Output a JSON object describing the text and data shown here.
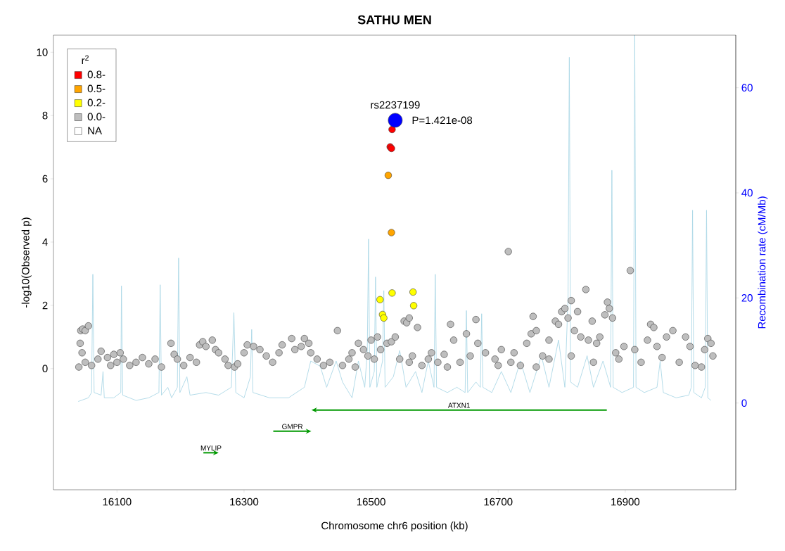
{
  "chart_data": {
    "type": "scatter",
    "title": "SATHU MEN",
    "xlabel": "Chromosome chr6 position (kb)",
    "ylabel": "-log10(Observed p)",
    "y2label": "Recombination rate (cM/Mb)",
    "legend_title": "r$^{2}$",
    "legend": "top left",
    "xlim": [
      16000,
      17074
    ],
    "xticks": [
      16100,
      16300,
      16500,
      16700,
      16900
    ],
    "ylim": [
      -3.83,
      10.54
    ],
    "yticks": [
      0,
      2,
      4,
      6,
      8,
      10
    ],
    "y2lim": [
      -16.5,
      70
    ],
    "y2ticks": [
      0,
      20,
      40,
      60
    ],
    "annotations": [
      {
        "text": "rs2237199",
        "x": 16538,
        "y": 7.85
      },
      {
        "text": "P=1.421e-08",
        "x": 16538,
        "y": 7.85
      },
      "ATXN1",
      "GMPR",
      "MYLIP"
    ],
    "series": [
      {
        "marker": "circle",
        "color": "#0000ff",
        "x": [
          16538
        ],
        "values": [
          7.85
        ]
      },
      {
        "name": "0.8-",
        "marker": "circle",
        "color": "#ff0000",
        "x": [
          16533,
          16530,
          16532
        ],
        "values": [
          7.56,
          7.01,
          6.96
        ]
      },
      {
        "name": "0.5-",
        "marker": "circle",
        "color": "#ffa500",
        "x": [
          16527,
          16532
        ],
        "values": [
          6.11,
          4.3
        ]
      },
      {
        "name": "0.2-",
        "marker": "circle",
        "color": "#ffff00",
        "x": [
          16514,
          16533,
          16566,
          16567,
          16518,
          16520
        ],
        "values": [
          2.18,
          2.39,
          2.42,
          1.99,
          1.71,
          1.6
        ]
      },
      {
        "name": "0.0-",
        "marker": "circle",
        "color": "#bebebe",
        "x": [
          16040,
          16042,
          16043,
          16046,
          16050,
          16055,
          16045,
          16050,
          16060,
          16070,
          16075,
          16085,
          16090,
          16095,
          16100,
          16105,
          16110,
          16120,
          16130,
          16140,
          16150,
          16160,
          16170,
          16185,
          16190,
          16195,
          16205,
          16215,
          16225,
          16230,
          16235,
          16240,
          16250,
          16255,
          16260,
          16270,
          16275,
          16285,
          16290,
          16300,
          16305,
          16315,
          16325,
          16335,
          16345,
          16355,
          16360,
          16375,
          16380,
          16390,
          16395,
          16402,
          16405,
          16415,
          16425,
          16435,
          16447,
          16455,
          16465,
          16475,
          16480,
          16488,
          16495,
          16500,
          16505,
          16510,
          16515,
          16525,
          16532,
          16538,
          16545,
          16552,
          16556,
          16560,
          16565,
          16573,
          16580,
          16590,
          16595,
          16605,
          16615,
          16625,
          16630,
          16640,
          16650,
          16656,
          16665,
          16668,
          16680,
          16695,
          16705,
          16716,
          16725,
          16735,
          16745,
          16752,
          16755,
          16760,
          16770,
          16780,
          16790,
          16795,
          16800,
          16805,
          16810,
          16815,
          16820,
          16825,
          16830,
          16838,
          16842,
          16848,
          16855,
          16860,
          16868,
          16872,
          16875,
          16880,
          16885,
          16890,
          16898,
          16908,
          16915,
          16925,
          16935,
          16940,
          16945,
          16950,
          16958,
          16965,
          16975,
          16985,
          16995,
          17002,
          17010,
          17020,
          17025,
          17030,
          17035,
          17038,
          16780,
          16815,
          16850,
          16720,
          16760,
          16700,
          16620,
          16560,
          16470
        ],
        "values": [
          0.05,
          0.8,
          1.2,
          1.25,
          1.2,
          1.35,
          0.5,
          0.2,
          0.1,
          0.3,
          0.55,
          0.35,
          0.1,
          0.45,
          0.2,
          0.5,
          0.3,
          0.1,
          0.2,
          0.35,
          0.15,
          0.3,
          0.05,
          0.8,
          0.45,
          0.3,
          0.1,
          0.35,
          0.2,
          0.75,
          0.85,
          0.7,
          0.9,
          0.6,
          0.5,
          0.3,
          0.1,
          0.05,
          0.15,
          0.5,
          0.75,
          0.7,
          0.6,
          0.4,
          0.2,
          0.5,
          0.75,
          0.95,
          0.6,
          0.7,
          0.95,
          0.8,
          0.5,
          0.3,
          0.1,
          0.2,
          1.2,
          0.1,
          0.3,
          0.05,
          0.8,
          0.6,
          0.4,
          0.9,
          0.3,
          1.0,
          0.6,
          0.8,
          0.85,
          1.0,
          0.3,
          1.5,
          1.45,
          1.6,
          0.4,
          1.3,
          0.1,
          0.3,
          0.5,
          0.2,
          0.45,
          1.4,
          0.9,
          0.2,
          1.1,
          0.4,
          1.55,
          0.8,
          0.5,
          0.3,
          0.6,
          3.7,
          0.5,
          0.1,
          0.8,
          1.1,
          1.65,
          1.2,
          0.4,
          0.3,
          1.5,
          1.4,
          1.8,
          1.9,
          1.6,
          2.15,
          1.2,
          1.8,
          1.0,
          2.5,
          0.9,
          1.5,
          0.8,
          1.0,
          1.7,
          2.1,
          1.9,
          1.6,
          0.5,
          0.3,
          0.7,
          3.1,
          0.6,
          0.2,
          0.9,
          1.4,
          1.3,
          0.7,
          0.35,
          1.0,
          1.2,
          0.2,
          1.0,
          0.7,
          0.1,
          0.05,
          0.6,
          0.95,
          0.8,
          0.4,
          0.9,
          0.4,
          0.2,
          0.2,
          0.05,
          0.1,
          0.05,
          0.2,
          0.5
        ]
      },
      {
        "name": "NA",
        "color": "#ffffff"
      },
      {
        "type": "line",
        "marker": "none",
        "axis": "y2",
        "color": "#add8e6",
        "x": [
          16039,
          16055,
          16060,
          16062,
          16064,
          16075,
          16078,
          16080,
          16095,
          16106,
          16107,
          16109,
          16130,
          16150,
          16166,
          16168,
          16170,
          16180,
          16186,
          16195,
          16197,
          16199,
          16210,
          16215,
          16240,
          16260,
          16280,
          16284,
          16287,
          16300,
          16310,
          16312,
          16314,
          16340,
          16370,
          16395,
          16405,
          16420,
          16430,
          16445,
          16455,
          16470,
          16480,
          16490,
          16494,
          16496,
          16498,
          16505,
          16507,
          16509,
          16518,
          16520,
          16522,
          16535,
          16545,
          16555,
          16570,
          16580,
          16590,
          16599,
          16601,
          16603,
          16620,
          16635,
          16648,
          16650,
          16652,
          16665,
          16672,
          16674,
          16676,
          16690,
          16705,
          16720,
          16735,
          16750,
          16768,
          16780,
          16795,
          16805,
          16810,
          16812,
          16814,
          16825,
          16840,
          16850,
          16865,
          16877,
          16879,
          16881,
          16895,
          16913,
          16915,
          16917,
          16930,
          16950,
          16955,
          16960,
          16980,
          17000,
          17004,
          17006,
          17008,
          17020,
          17026,
          17028,
          17030,
          17035
        ],
        "values": [
          0.3,
          1.0,
          2,
          24.5,
          2,
          1.5,
          6,
          1,
          1,
          2,
          22.3,
          1.5,
          0.5,
          1,
          2,
          22.5,
          1.5,
          3,
          1,
          3,
          27.6,
          2,
          5,
          1.5,
          2,
          1.5,
          3,
          17.2,
          2,
          1,
          5,
          14,
          2,
          1,
          1,
          3,
          8,
          7,
          3,
          8,
          4,
          1,
          8,
          3,
          10,
          31.2,
          3,
          6,
          24,
          3,
          8,
          21.4,
          3,
          5,
          10,
          3,
          6,
          2,
          8,
          3,
          24.5,
          3,
          2,
          3,
          2,
          17.6,
          2,
          4,
          3,
          17,
          3,
          2,
          6,
          2,
          8,
          2,
          9,
          3,
          12,
          3,
          20,
          65.8,
          4,
          3,
          9,
          3,
          8,
          3,
          44.3,
          3,
          2,
          3,
          70,
          3,
          2,
          3,
          8,
          2,
          1,
          1.5,
          3,
          36.7,
          2,
          1,
          3,
          36.7,
          1,
          0.5
        ]
      }
    ]
  }
}
